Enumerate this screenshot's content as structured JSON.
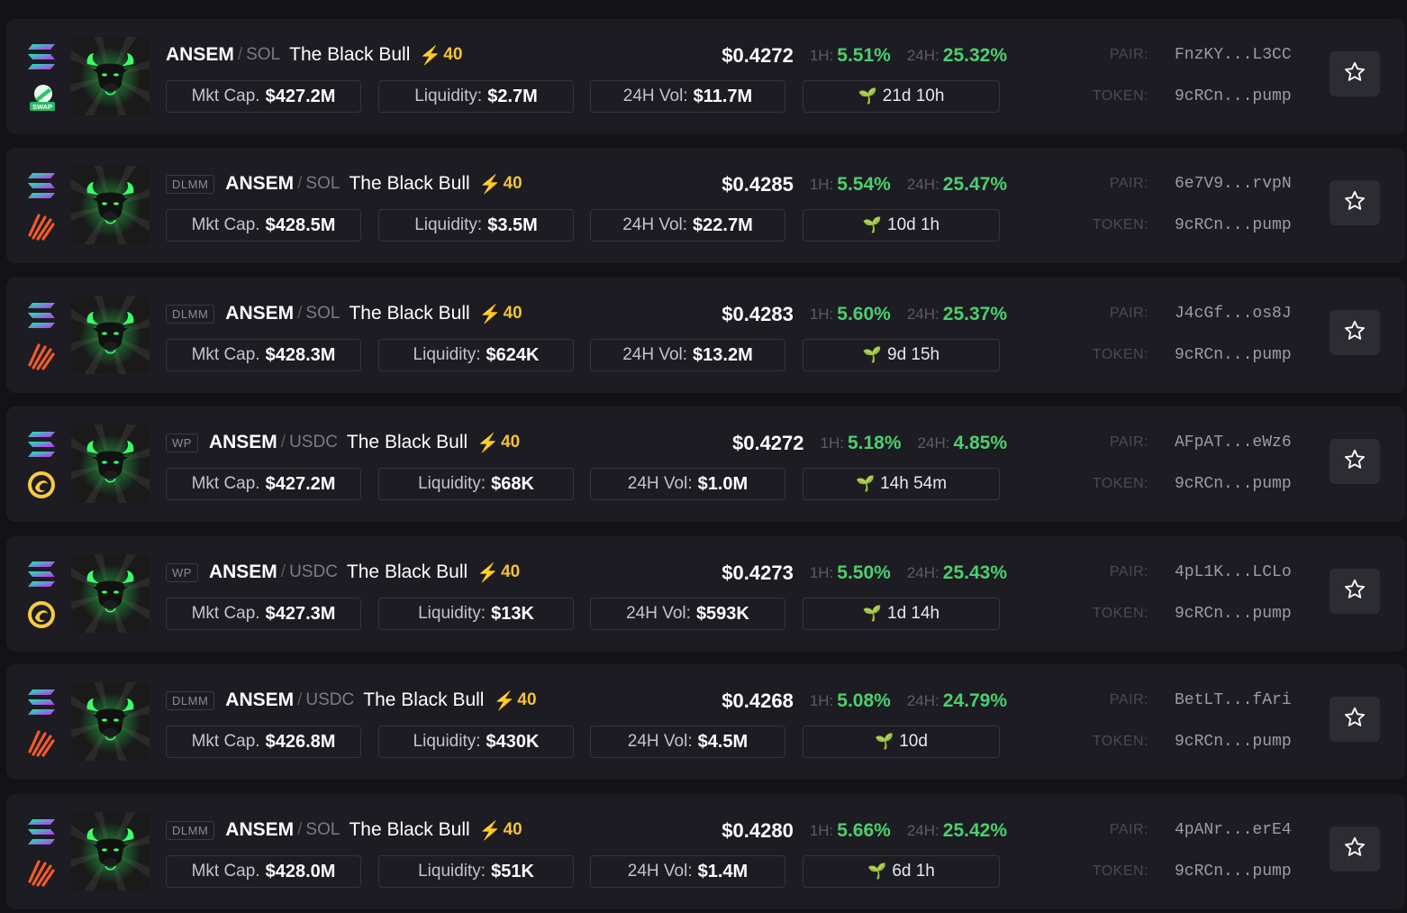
{
  "labels": {
    "mktcap": "Mkt Cap.",
    "liquidity": "Liquidity:",
    "vol": "24H Vol:",
    "h1": "1H:",
    "h24": "24H:",
    "pair": "PAIR:",
    "token": "TOKEN:",
    "slash": "/",
    "bolt": "⚡",
    "age_icon": "🌱"
  },
  "colors": {
    "accent_green": "#4ccf6e",
    "bolt_yellow": "#f4c23b",
    "card_bg": "#1c1c22"
  },
  "rows": [
    {
      "badge": "",
      "ticker": "ANSEM",
      "quote": "SOL",
      "name": "The Black Bull",
      "score": "40",
      "price": "$0.4272",
      "h1": "5.51%",
      "h24": "25.32%",
      "mktcap": "$427.2M",
      "liquidity": "$2.7M",
      "vol": "$11.7M",
      "age": "21d 10h",
      "pair": "FnzKY...L3CC",
      "token": "9cRCn...pump",
      "dex": "swap-icon",
      "dex_label": "SWAP"
    },
    {
      "badge": "DLMM",
      "ticker": "ANSEM",
      "quote": "SOL",
      "name": "The Black Bull",
      "score": "40",
      "price": "$0.4285",
      "h1": "5.54%",
      "h24": "25.47%",
      "mktcap": "$428.5M",
      "liquidity": "$3.5M",
      "vol": "$22.7M",
      "age": "10d 1h",
      "pair": "6e7V9...rvpN",
      "token": "9cRCn...pump",
      "dex": "meteora-icon"
    },
    {
      "badge": "DLMM",
      "ticker": "ANSEM",
      "quote": "SOL",
      "name": "The Black Bull",
      "score": "40",
      "price": "$0.4283",
      "h1": "5.60%",
      "h24": "25.37%",
      "mktcap": "$428.3M",
      "liquidity": "$624K",
      "vol": "$13.2M",
      "age": "9d 15h",
      "pair": "J4cGf...os8J",
      "token": "9cRCn...pump",
      "dex": "meteora-icon"
    },
    {
      "badge": "WP",
      "ticker": "ANSEM",
      "quote": "USDC",
      "name": "The Black Bull",
      "score": "40",
      "price": "$0.4272",
      "h1": "5.18%",
      "h24": "4.85%",
      "mktcap": "$427.2M",
      "liquidity": "$68K",
      "vol": "$1.0M",
      "age": "14h 54m",
      "pair": "AFpAT...eWz6",
      "token": "9cRCn...pump",
      "dex": "orca-icon"
    },
    {
      "badge": "WP",
      "ticker": "ANSEM",
      "quote": "USDC",
      "name": "The Black Bull",
      "score": "40",
      "price": "$0.4273",
      "h1": "5.50%",
      "h24": "25.43%",
      "mktcap": "$427.3M",
      "liquidity": "$13K",
      "vol": "$593K",
      "age": "1d 14h",
      "pair": "4pL1K...LCLo",
      "token": "9cRCn...pump",
      "dex": "orca-icon"
    },
    {
      "badge": "DLMM",
      "ticker": "ANSEM",
      "quote": "USDC",
      "name": "The Black Bull",
      "score": "40",
      "price": "$0.4268",
      "h1": "5.08%",
      "h24": "24.79%",
      "mktcap": "$426.8M",
      "liquidity": "$430K",
      "vol": "$4.5M",
      "age": "10d",
      "pair": "BetLT...fAri",
      "token": "9cRCn...pump",
      "dex": "meteora-icon"
    },
    {
      "badge": "DLMM",
      "ticker": "ANSEM",
      "quote": "SOL",
      "name": "The Black Bull",
      "score": "40",
      "price": "$0.4280",
      "h1": "5.66%",
      "h24": "25.42%",
      "mktcap": "$428.0M",
      "liquidity": "$51K",
      "vol": "$1.4M",
      "age": "6d 1h",
      "pair": "4pANr...erE4",
      "token": "9cRCn...pump",
      "dex": "meteora-icon"
    }
  ]
}
